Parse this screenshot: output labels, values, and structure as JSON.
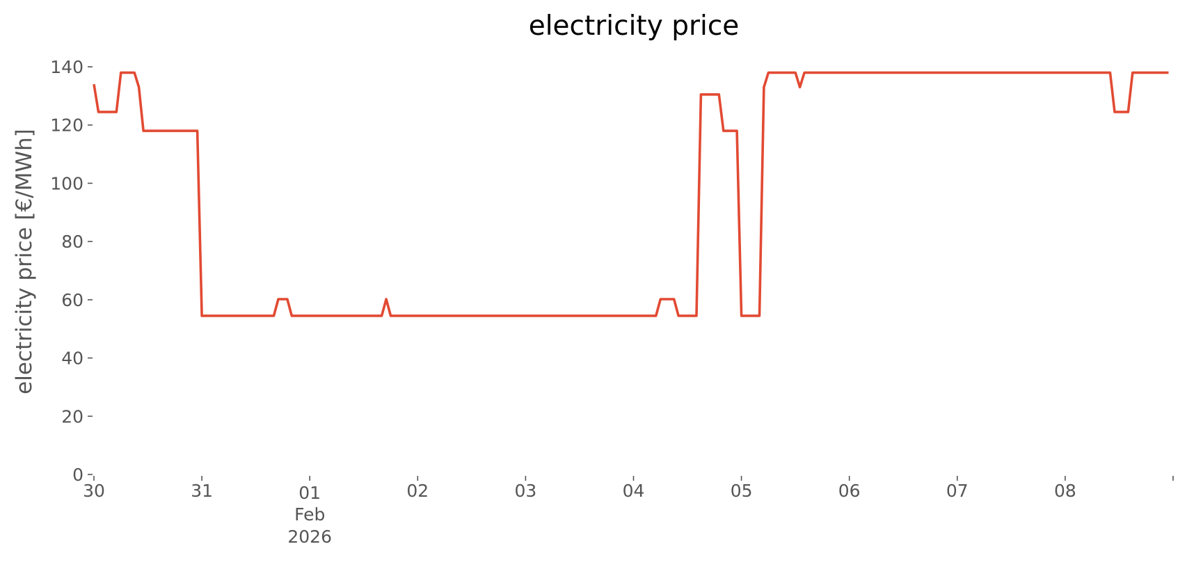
{
  "chart_data": {
    "type": "line",
    "title": "electricity price",
    "xlabel": "",
    "ylabel": "electricity price [€/MWh]",
    "grid": false,
    "legend": "none",
    "line_color": "#E24A33",
    "xlim": [
      "2026-01-30T00:00",
      "2026-02-08T23:00"
    ],
    "ylim": [
      0,
      140
    ],
    "y_ticks": [
      0,
      20,
      40,
      60,
      80,
      100,
      120,
      140
    ],
    "x_ticks": [
      {
        "x": "2026-01-30T00:00",
        "label": "30"
      },
      {
        "x": "2026-01-31T00:00",
        "label": "31"
      },
      {
        "x": "2026-02-01T00:00",
        "label": "01",
        "sublabel": "Feb",
        "sublabel2": "2026"
      },
      {
        "x": "2026-02-02T00:00",
        "label": "02"
      },
      {
        "x": "2026-02-03T00:00",
        "label": "03"
      },
      {
        "x": "2026-02-04T00:00",
        "label": "04"
      },
      {
        "x": "2026-02-05T00:00",
        "label": "05"
      },
      {
        "x": "2026-02-06T00:00",
        "label": "06"
      },
      {
        "x": "2026-02-07T00:00",
        "label": "07"
      },
      {
        "x": "2026-02-08T00:00",
        "label": "08"
      },
      {
        "x": "2026-02-09T00:00",
        "label": ""
      }
    ],
    "series": [
      {
        "x": [
          "2026-01-30T00:00",
          "2026-01-30T01:00",
          "2026-01-30T05:00",
          "2026-01-30T06:00",
          "2026-01-30T09:00",
          "2026-01-30T10:00",
          "2026-01-30T11:00",
          "2026-01-30T23:00",
          "2026-01-31T00:00",
          "2026-01-31T16:00",
          "2026-01-31T17:00",
          "2026-01-31T19:00",
          "2026-01-31T20:00",
          "2026-02-01T16:00",
          "2026-02-01T17:00",
          "2026-02-01T18:00",
          "2026-02-04T05:00",
          "2026-02-04T06:00",
          "2026-02-04T09:00",
          "2026-02-04T10:00",
          "2026-02-04T14:00",
          "2026-02-04T15:00",
          "2026-02-04T19:00",
          "2026-02-04T20:00",
          "2026-02-04T23:00",
          "2026-02-05T00:00",
          "2026-02-05T04:00",
          "2026-02-05T05:00",
          "2026-02-05T06:00",
          "2026-02-05T12:00",
          "2026-02-05T13:00",
          "2026-02-05T14:00",
          "2026-02-08T10:00",
          "2026-02-08T11:00",
          "2026-02-08T14:00",
          "2026-02-08T15:00",
          "2026-02-08T23:00"
        ],
        "y": [
          134,
          124.5,
          124.5,
          138,
          138,
          133,
          118,
          118,
          54.5,
          54.5,
          60.2,
          60.2,
          54.5,
          54.5,
          60.2,
          54.5,
          54.5,
          60.2,
          60.2,
          54.5,
          54.5,
          130.5,
          130.5,
          118,
          118,
          54.5,
          54.5,
          133,
          138,
          138,
          133,
          138,
          138,
          124.5,
          124.5,
          138,
          138
        ]
      }
    ]
  }
}
